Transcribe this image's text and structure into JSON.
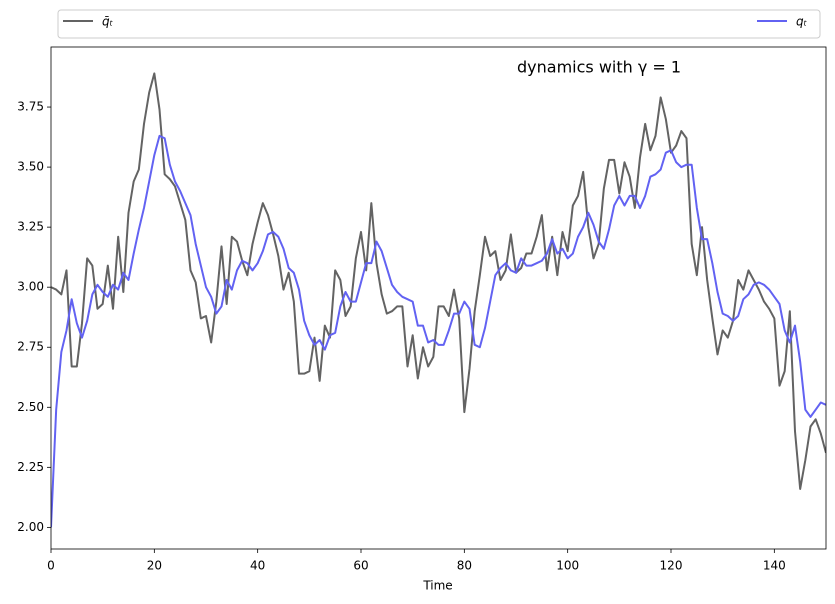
{
  "chart_data": {
    "type": "line",
    "annotation": "dynamics with γ = 1",
    "x_label": "Time",
    "legend": "above",
    "line_width": 2,
    "x": [
      0,
      1,
      2,
      3,
      4,
      5,
      6,
      7,
      8,
      9,
      10,
      11,
      12,
      13,
      14,
      15,
      16,
      17,
      18,
      19,
      20,
      21,
      22,
      23,
      24,
      25,
      26,
      27,
      28,
      29,
      30,
      31,
      32,
      33,
      34,
      35,
      36,
      37,
      38,
      39,
      40,
      41,
      42,
      43,
      44,
      45,
      46,
      47,
      48,
      49,
      50,
      51,
      52,
      53,
      54,
      55,
      56,
      57,
      58,
      59,
      60,
      61,
      62,
      63,
      64,
      65,
      66,
      67,
      68,
      69,
      70,
      71,
      72,
      73,
      74,
      75,
      76,
      77,
      78,
      79,
      80,
      81,
      82,
      83,
      84,
      85,
      86,
      87,
      88,
      89,
      90,
      91,
      92,
      93,
      94,
      95,
      96,
      97,
      98,
      99,
      100,
      101,
      102,
      103,
      104,
      105,
      106,
      107,
      108,
      109,
      110,
      111,
      112,
      113,
      114,
      115,
      116,
      117,
      118,
      119,
      120,
      121,
      122,
      123,
      124,
      125,
      126,
      127,
      128,
      129,
      130,
      131,
      132,
      133,
      134,
      135,
      136,
      137,
      138,
      139,
      140,
      141,
      142,
      143,
      144,
      145,
      146,
      147,
      148,
      149,
      150
    ],
    "series": [
      {
        "name": "q̄ₜ",
        "color": "#636363",
        "values": [
          3.0,
          2.99,
          2.97,
          3.07,
          2.67,
          2.67,
          2.85,
          3.12,
          3.09,
          2.91,
          2.93,
          3.09,
          2.91,
          3.21,
          2.98,
          3.31,
          3.44,
          3.49,
          3.68,
          3.81,
          3.89,
          3.74,
          3.47,
          3.45,
          3.42,
          3.35,
          3.28,
          3.07,
          3.02,
          2.87,
          2.88,
          2.77,
          2.94,
          3.17,
          2.93,
          3.21,
          3.19,
          3.11,
          3.05,
          3.18,
          3.27,
          3.35,
          3.3,
          3.22,
          3.13,
          2.99,
          3.06,
          2.94,
          2.64,
          2.64,
          2.65,
          2.79,
          2.61,
          2.84,
          2.79,
          3.07,
          3.03,
          2.88,
          2.92,
          3.12,
          3.23,
          3.07,
          3.35,
          3.1,
          2.97,
          2.89,
          2.9,
          2.92,
          2.92,
          2.67,
          2.8,
          2.62,
          2.75,
          2.67,
          2.71,
          2.92,
          2.92,
          2.88,
          2.99,
          2.87,
          2.48,
          2.66,
          2.9,
          3.05,
          3.21,
          3.13,
          3.15,
          3.03,
          3.07,
          3.22,
          3.06,
          3.08,
          3.14,
          3.14,
          3.21,
          3.3,
          3.07,
          3.21,
          3.05,
          3.23,
          3.15,
          3.34,
          3.38,
          3.48,
          3.25,
          3.12,
          3.18,
          3.41,
          3.53,
          3.53,
          3.39,
          3.52,
          3.46,
          3.33,
          3.54,
          3.68,
          3.57,
          3.63,
          3.79,
          3.7,
          3.56,
          3.59,
          3.65,
          3.62,
          3.18,
          3.05,
          3.25,
          3.03,
          2.87,
          2.72,
          2.82,
          2.79,
          2.86,
          3.03,
          2.99,
          3.07,
          3.03,
          2.99,
          2.94,
          2.91,
          2.87,
          2.59,
          2.65,
          2.9,
          2.4,
          2.16,
          2.28,
          2.42,
          2.45,
          2.39,
          2.31
        ]
      },
      {
        "name": "qₜ",
        "color": "#6262f2",
        "values": [
          2.0,
          2.49,
          2.73,
          2.82,
          2.95,
          2.85,
          2.79,
          2.86,
          2.97,
          3.01,
          2.98,
          2.96,
          3.01,
          2.99,
          3.06,
          3.03,
          3.14,
          3.24,
          3.33,
          3.44,
          3.55,
          3.63,
          3.62,
          3.51,
          3.44,
          3.4,
          3.35,
          3.3,
          3.18,
          3.09,
          3.0,
          2.96,
          2.89,
          2.92,
          3.03,
          2.99,
          3.07,
          3.11,
          3.1,
          3.07,
          3.1,
          3.15,
          3.22,
          3.23,
          3.21,
          3.16,
          3.08,
          3.06,
          2.99,
          2.86,
          2.8,
          2.76,
          2.78,
          2.74,
          2.8,
          2.81,
          2.92,
          2.98,
          2.94,
          2.94,
          3.02,
          3.1,
          3.1,
          3.19,
          3.15,
          3.08,
          3.01,
          2.98,
          2.96,
          2.95,
          2.94,
          2.84,
          2.84,
          2.77,
          2.78,
          2.76,
          2.76,
          2.82,
          2.89,
          2.89,
          2.94,
          2.91,
          2.76,
          2.75,
          2.83,
          2.94,
          3.05,
          3.08,
          3.1,
          3.07,
          3.06,
          3.12,
          3.09,
          3.09,
          3.1,
          3.11,
          3.14,
          3.2,
          3.14,
          3.16,
          3.12,
          3.14,
          3.21,
          3.25,
          3.31,
          3.26,
          3.19,
          3.16,
          3.24,
          3.34,
          3.38,
          3.34,
          3.38,
          3.38,
          3.33,
          3.38,
          3.46,
          3.47,
          3.49,
          3.56,
          3.57,
          3.52,
          3.5,
          3.51,
          3.51,
          3.33,
          3.2,
          3.2,
          3.1,
          2.98,
          2.89,
          2.88,
          2.86,
          2.88,
          2.95,
          2.97,
          3.01,
          3.02,
          3.01,
          2.99,
          2.96,
          2.93,
          2.82,
          2.77,
          2.84,
          2.69,
          2.49,
          2.46,
          2.49,
          2.52,
          2.51
        ]
      }
    ],
    "xlim": [
      0,
      150
    ],
    "xticks": [
      0,
      20,
      40,
      60,
      80,
      100,
      120,
      140
    ],
    "ylim": [
      1.91,
      4.0
    ],
    "yticks": [
      {
        "value": 2,
        "label": "2.00"
      },
      2.25,
      {
        "value": 2.5,
        "label": "2.50"
      },
      2.75,
      {
        "value": 3,
        "label": "3.00"
      },
      3.25,
      {
        "value": 3.5,
        "label": "3.50"
      },
      3.75
    ]
  }
}
